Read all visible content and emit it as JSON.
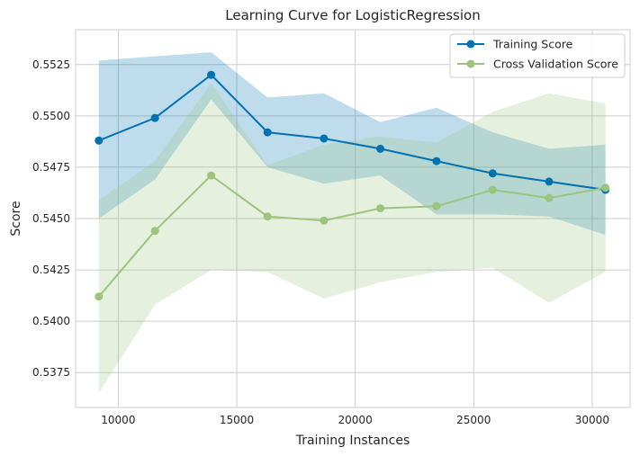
{
  "chart_data": {
    "type": "line",
    "title": "Learning Curve for LogisticRegression",
    "xlabel": "Training Instances",
    "ylabel": "Score",
    "xlim": [
      8200,
      31600
    ],
    "ylim": [
      0.5358,
      0.5542
    ],
    "xticks": [
      10000,
      15000,
      20000,
      25000,
      30000
    ],
    "yticks": [
      0.5375,
      0.54,
      0.5425,
      0.545,
      0.5475,
      0.55,
      0.5525
    ],
    "ytick_labels": [
      "0.5375",
      "0.5400",
      "0.5425",
      "0.5450",
      "0.5475",
      "0.5500",
      "0.5525"
    ],
    "grid": true,
    "legend_position": "top-right",
    "x": [
      9180,
      11550,
      13920,
      16300,
      18680,
      21060,
      23430,
      25800,
      28180,
      30560
    ],
    "series": [
      {
        "name": "Training Score",
        "color": "#0072b2",
        "band_color": "#0072b2",
        "values": [
          0.5488,
          0.5499,
          0.552,
          0.5492,
          0.5489,
          0.5484,
          0.5478,
          0.5472,
          0.5468,
          0.5464
        ],
        "upper": [
          0.5527,
          0.5529,
          0.5531,
          0.5509,
          0.5511,
          0.5497,
          0.5504,
          0.5492,
          0.5484,
          0.5486
        ],
        "lower": [
          0.545,
          0.5469,
          0.5508,
          0.5475,
          0.5467,
          0.5471,
          0.5452,
          0.5452,
          0.5451,
          0.5442
        ]
      },
      {
        "name": "Cross Validation Score",
        "color": "#9dc47e",
        "band_color": "#9dc47e",
        "values": [
          0.5412,
          0.5444,
          0.5471,
          0.5451,
          0.5449,
          0.5455,
          0.5456,
          0.5464,
          0.546,
          0.5465
        ],
        "upper": [
          0.5459,
          0.5478,
          0.5516,
          0.5476,
          0.5486,
          0.549,
          0.5487,
          0.5502,
          0.5511,
          0.5506
        ],
        "lower": [
          0.5365,
          0.5408,
          0.5425,
          0.5424,
          0.5411,
          0.5419,
          0.5424,
          0.5426,
          0.5409,
          0.5424
        ]
      }
    ]
  }
}
